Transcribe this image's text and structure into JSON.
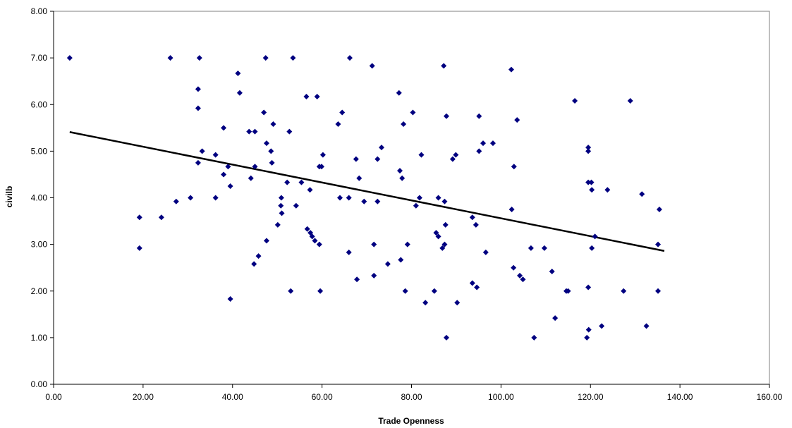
{
  "chart_data": {
    "type": "scatter",
    "title": "",
    "xlabel": "Trade Openness",
    "ylabel": "civilb",
    "xlim": [
      0,
      160
    ],
    "ylim": [
      0,
      8
    ],
    "x_ticks": [
      "0.00",
      "20.00",
      "40.00",
      "60.00",
      "80.00",
      "100.00",
      "120.00",
      "140.00",
      "160.00"
    ],
    "y_ticks": [
      "0.00",
      "1.00",
      "2.00",
      "3.00",
      "4.00",
      "5.00",
      "6.00",
      "7.00",
      "8.00"
    ],
    "grid": false,
    "legend": "none",
    "marker_color": "#000080",
    "trendline_color": "#000000",
    "trendline": {
      "x": [
        3.6,
        136.5
      ],
      "y": [
        5.41,
        2.86
      ]
    },
    "points": [
      [
        3.6,
        7.0
      ],
      [
        19.2,
        3.58
      ],
      [
        19.2,
        2.92
      ],
      [
        24.1,
        3.58
      ],
      [
        26.1,
        7.0
      ],
      [
        27.4,
        3.92
      ],
      [
        30.6,
        4.0
      ],
      [
        32.3,
        6.33
      ],
      [
        32.3,
        5.92
      ],
      [
        32.3,
        4.75
      ],
      [
        32.6,
        7.0
      ],
      [
        33.2,
        5.0
      ],
      [
        36.2,
        4.92
      ],
      [
        36.2,
        4.0
      ],
      [
        38.0,
        5.5
      ],
      [
        38.0,
        4.5
      ],
      [
        39.0,
        4.67
      ],
      [
        39.5,
        4.25
      ],
      [
        39.5,
        1.83
      ],
      [
        41.2,
        6.67
      ],
      [
        41.6,
        6.25
      ],
      [
        43.7,
        5.42
      ],
      [
        44.1,
        4.42
      ],
      [
        44.8,
        2.58
      ],
      [
        45.0,
        5.42
      ],
      [
        45.0,
        4.67
      ],
      [
        45.8,
        2.75
      ],
      [
        47.0,
        5.83
      ],
      [
        47.4,
        7.0
      ],
      [
        47.6,
        5.17
      ],
      [
        47.6,
        3.08
      ],
      [
        48.6,
        5.0
      ],
      [
        48.8,
        4.75
      ],
      [
        49.1,
        5.58
      ],
      [
        50.1,
        3.42
      ],
      [
        50.8,
        3.83
      ],
      [
        50.9,
        4.0
      ],
      [
        51.0,
        3.67
      ],
      [
        52.2,
        4.33
      ],
      [
        52.7,
        5.42
      ],
      [
        53.0,
        2.0
      ],
      [
        53.5,
        7.0
      ],
      [
        54.2,
        3.83
      ],
      [
        55.4,
        4.33
      ],
      [
        56.5,
        6.17
      ],
      [
        56.7,
        3.33
      ],
      [
        57.3,
        4.17
      ],
      [
        57.4,
        3.25
      ],
      [
        57.8,
        3.17
      ],
      [
        58.4,
        3.08
      ],
      [
        58.9,
        6.17
      ],
      [
        59.4,
        4.67
      ],
      [
        59.4,
        3.0
      ],
      [
        59.6,
        2.0
      ],
      [
        59.9,
        4.67
      ],
      [
        60.2,
        4.92
      ],
      [
        63.6,
        5.58
      ],
      [
        64.0,
        4.0
      ],
      [
        64.5,
        5.83
      ],
      [
        66.0,
        4.0
      ],
      [
        66.0,
        2.83
      ],
      [
        66.2,
        7.0
      ],
      [
        67.6,
        4.83
      ],
      [
        67.8,
        2.25
      ],
      [
        68.3,
        4.42
      ],
      [
        69.4,
        3.92
      ],
      [
        71.2,
        6.83
      ],
      [
        71.6,
        3.0
      ],
      [
        71.6,
        2.33
      ],
      [
        72.4,
        4.83
      ],
      [
        72.4,
        3.92
      ],
      [
        73.3,
        5.08
      ],
      [
        74.7,
        2.58
      ],
      [
        77.2,
        6.25
      ],
      [
        77.4,
        4.58
      ],
      [
        77.6,
        2.67
      ],
      [
        77.9,
        4.42
      ],
      [
        78.2,
        5.58
      ],
      [
        78.6,
        2.0
      ],
      [
        79.1,
        3.0
      ],
      [
        80.3,
        5.83
      ],
      [
        81.0,
        3.83
      ],
      [
        81.8,
        4.0
      ],
      [
        82.2,
        4.92
      ],
      [
        83.1,
        1.75
      ],
      [
        85.1,
        2.0
      ],
      [
        85.5,
        3.25
      ],
      [
        86.0,
        4.0
      ],
      [
        86.0,
        3.17
      ],
      [
        86.9,
        2.92
      ],
      [
        87.2,
        6.83
      ],
      [
        87.4,
        3.92
      ],
      [
        87.4,
        3.0
      ],
      [
        87.6,
        3.42
      ],
      [
        87.8,
        5.75
      ],
      [
        87.8,
        1.0
      ],
      [
        89.2,
        4.83
      ],
      [
        89.9,
        4.92
      ],
      [
        90.2,
        1.75
      ],
      [
        93.6,
        2.17
      ],
      [
        93.6,
        3.58
      ],
      [
        94.4,
        3.42
      ],
      [
        94.6,
        2.08
      ],
      [
        95.1,
        5.75
      ],
      [
        95.1,
        5.0
      ],
      [
        96.0,
        5.17
      ],
      [
        96.6,
        2.83
      ],
      [
        98.2,
        5.17
      ],
      [
        102.3,
        6.75
      ],
      [
        102.4,
        3.75
      ],
      [
        102.8,
        2.5
      ],
      [
        102.9,
        4.67
      ],
      [
        103.6,
        5.67
      ],
      [
        104.2,
        2.33
      ],
      [
        104.9,
        2.25
      ],
      [
        106.7,
        2.92
      ],
      [
        107.4,
        1.0
      ],
      [
        109.7,
        2.92
      ],
      [
        111.4,
        2.42
      ],
      [
        112.1,
        1.42
      ],
      [
        114.6,
        2.0
      ],
      [
        115.0,
        2.0
      ],
      [
        116.5,
        6.08
      ],
      [
        119.2,
        1.0
      ],
      [
        119.5,
        4.33
      ],
      [
        119.5,
        5.08
      ],
      [
        119.5,
        5.0
      ],
      [
        119.5,
        2.08
      ],
      [
        119.6,
        1.17
      ],
      [
        120.2,
        4.33
      ],
      [
        120.3,
        4.17
      ],
      [
        120.3,
        2.92
      ],
      [
        121.0,
        3.17
      ],
      [
        122.5,
        1.25
      ],
      [
        123.8,
        4.17
      ],
      [
        127.4,
        2.0
      ],
      [
        128.9,
        6.08
      ],
      [
        131.5,
        4.08
      ],
      [
        132.5,
        1.25
      ],
      [
        135.1,
        3.0
      ],
      [
        135.1,
        2.0
      ],
      [
        135.4,
        3.75
      ]
    ]
  }
}
